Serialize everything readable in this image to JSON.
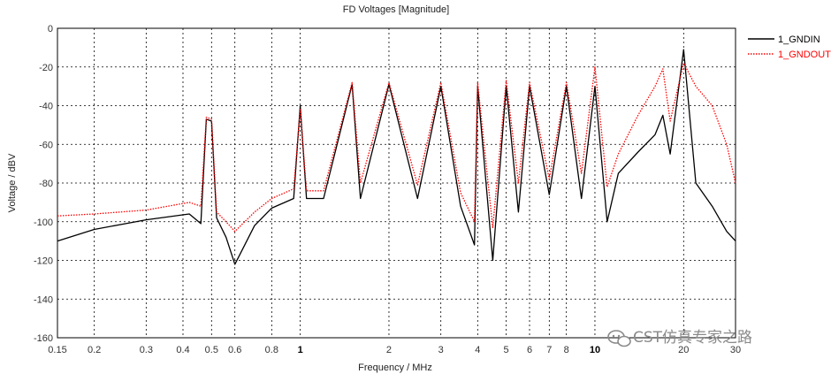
{
  "chart_data": {
    "type": "line",
    "title": "FD Voltages [Magnitude]",
    "xlabel": "Frequency / MHz",
    "ylabel": "Voltage / dBV",
    "x_scale": "log",
    "xlim": [
      0.15,
      30
    ],
    "ylim": [
      -160,
      0
    ],
    "grid": true,
    "legend_position": "top-right",
    "x_ticks": [
      {
        "value": 0.15,
        "label": "0.15",
        "bold": false
      },
      {
        "value": 0.2,
        "label": "0.2",
        "bold": false
      },
      {
        "value": 0.3,
        "label": "0.3",
        "bold": false
      },
      {
        "value": 0.4,
        "label": "0.4",
        "bold": false
      },
      {
        "value": 0.5,
        "label": "0.5",
        "bold": false
      },
      {
        "value": 0.6,
        "label": "0.6",
        "bold": false
      },
      {
        "value": 0.8,
        "label": "0.8",
        "bold": false
      },
      {
        "value": 1,
        "label": "1",
        "bold": true
      },
      {
        "value": 2,
        "label": "2",
        "bold": false
      },
      {
        "value": 3,
        "label": "3",
        "bold": false
      },
      {
        "value": 4,
        "label": "4",
        "bold": false
      },
      {
        "value": 5,
        "label": "5",
        "bold": false
      },
      {
        "value": 6,
        "label": "6",
        "bold": false
      },
      {
        "value": 7,
        "label": "7",
        "bold": false
      },
      {
        "value": 8,
        "label": "8",
        "bold": false
      },
      {
        "value": 10,
        "label": "10",
        "bold": true
      },
      {
        "value": 20,
        "label": "20",
        "bold": false
      },
      {
        "value": 30,
        "label": "30",
        "bold": false
      }
    ],
    "y_ticks": [
      0,
      -20,
      -40,
      -60,
      -80,
      -100,
      -120,
      -140,
      -160
    ],
    "series": [
      {
        "name": "1_GNDIN",
        "color": "#000000",
        "style": "solid",
        "x": [
          0.15,
          0.2,
          0.3,
          0.42,
          0.46,
          0.48,
          0.5,
          0.52,
          0.56,
          0.6,
          0.7,
          0.8,
          0.95,
          1.0,
          1.05,
          1.2,
          1.5,
          1.6,
          2.0,
          2.5,
          3.0,
          3.5,
          3.9,
          4.0,
          4.5,
          5.0,
          5.5,
          6.0,
          7.0,
          8.0,
          9.0,
          10.0,
          11.0,
          12.0,
          14.0,
          16.0,
          17.0,
          18.0,
          20.0,
          22.0,
          25.0,
          28.0,
          30.0
        ],
        "y": [
          -110,
          -104,
          -99,
          -96,
          -101,
          -47,
          -48,
          -98,
          -108,
          -122,
          -102,
          -93,
          -88,
          -40,
          -88,
          -88,
          -29,
          -88,
          -29,
          -88,
          -30,
          -92,
          -112,
          -30,
          -120,
          -30,
          -95,
          -30,
          -86,
          -30,
          -88,
          -30,
          -100,
          -75,
          -64,
          -55,
          -45,
          -65,
          -11,
          -80,
          -92,
          -105,
          -110
        ]
      },
      {
        "name": "1_GNDOUT",
        "color": "#ff0000",
        "style": "dotted",
        "x": [
          0.15,
          0.2,
          0.3,
          0.42,
          0.46,
          0.48,
          0.5,
          0.52,
          0.56,
          0.6,
          0.7,
          0.8,
          0.95,
          1.0,
          1.05,
          1.2,
          1.5,
          1.6,
          2.0,
          2.5,
          3.0,
          3.5,
          3.9,
          4.0,
          4.5,
          5.0,
          5.5,
          6.0,
          7.0,
          8.0,
          9.0,
          10.0,
          11.0,
          12.0,
          14.0,
          16.0,
          17.0,
          18.0,
          20.0,
          22.0,
          25.0,
          28.0,
          30.0
        ],
        "y": [
          -97,
          -96,
          -94,
          -90,
          -92,
          -46,
          -47,
          -95,
          -100,
          -105,
          -95,
          -88,
          -83,
          -42,
          -84,
          -84,
          -28,
          -80,
          -28,
          -81,
          -28,
          -85,
          -100,
          -28,
          -103,
          -27,
          -80,
          -28,
          -78,
          -28,
          -75,
          -20,
          -82,
          -65,
          -45,
          -30,
          -21,
          -48,
          -18,
          -30,
          -40,
          -60,
          -80
        ]
      }
    ]
  },
  "watermark": {
    "text": "CST仿真专家之路",
    "icon": "wechat-icon"
  }
}
